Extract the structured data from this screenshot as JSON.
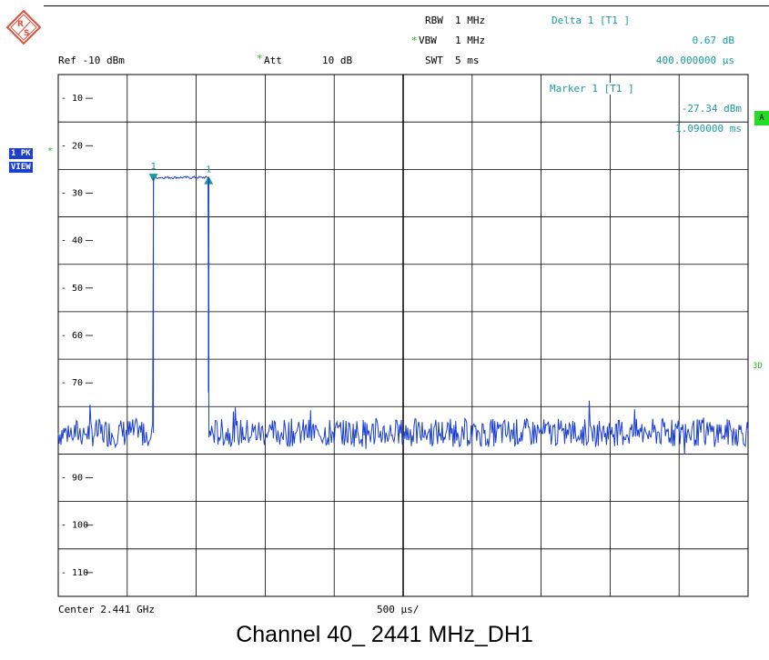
{
  "header": {
    "rbw_label": "RBW",
    "rbw_value": "1 MHz",
    "vbw_star": "*",
    "vbw_label": "VBW",
    "vbw_value": "1 MHz",
    "swt_label": "SWT",
    "swt_value": "5 ms",
    "ref": "Ref -10 dBm",
    "att_star": "*",
    "att_label": "Att",
    "att_value": "10 dB"
  },
  "delta_marker": {
    "title": "Delta 1 [T1 ]",
    "level": "0.67 dB",
    "time": "400.000000 µs"
  },
  "marker": {
    "title": "Marker 1 [T1 ]",
    "level": "-27.34 dBm",
    "time": "1.090000 ms"
  },
  "side": {
    "trace_badge": "1 PK",
    "view_badge": "VIEW",
    "star": "*",
    "a_label": "A",
    "three_d": "3D"
  },
  "footer": {
    "center": "Center 2.441 GHz",
    "division": "500 µs/"
  },
  "caption": "Channel 40_ 2441 MHz_DH1",
  "colors": {
    "trace": "#1b3fd0",
    "marker": "#1a9a9a",
    "grid": "#000000"
  },
  "chart_data": {
    "type": "line",
    "x_unit": "ms",
    "y_unit": "dBm",
    "xlim": [
      0,
      5
    ],
    "ylim": [
      -115,
      -5
    ],
    "y_ticks": [
      -10,
      -20,
      -30,
      -40,
      -50,
      -60,
      -70,
      -90,
      -100,
      -110
    ],
    "grid": true,
    "noise_floor_dBm": -80.5,
    "pulse": {
      "start_ms": 0.69,
      "end_ms": 1.09,
      "level_dBm": -26.7
    },
    "markers": [
      {
        "name": "1",
        "x_ms": 1.09,
        "y_dBm": -27.34,
        "shape": "triangle-up"
      },
      {
        "name": "1",
        "x_ms": 0.69,
        "y_dBm": -26.67,
        "shape": "triangle-down"
      }
    ]
  }
}
